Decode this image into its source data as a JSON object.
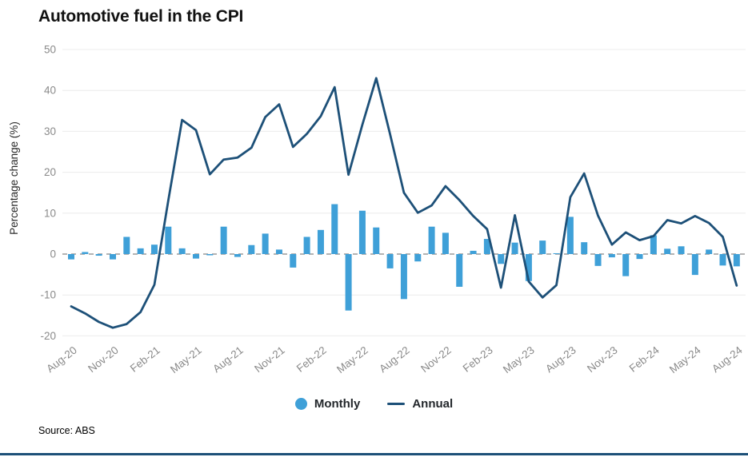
{
  "title": "Automotive fuel in the CPI",
  "source_note": "Source: ABS",
  "legend": {
    "monthly": "Monthly",
    "annual": "Annual"
  },
  "y_axis": {
    "label": "Percentage change (%)",
    "ticks": [
      50,
      40,
      30,
      20,
      10,
      0,
      -10,
      -20
    ]
  },
  "colors": {
    "monthly_bar": "#3FA0D8",
    "annual_line": "#1D5078",
    "gridline": "#ECECEC",
    "zero_line": "#B3B3B3",
    "tick_text": "#8A8A8A",
    "axis_label_text": "#2B2B2B",
    "title_text": "#111111",
    "bottom_border": "#1D5078"
  },
  "chart_data": {
    "type": "bar+line",
    "title": "Automotive fuel in the CPI",
    "xlabel": "",
    "ylabel": "Percentage change (%)",
    "ylim": [
      -20,
      50
    ],
    "ytick_step": 10,
    "grid": true,
    "legend_position": "bottom",
    "x_tick_every": 3,
    "categories": [
      "Aug-20",
      "Sep-20",
      "Oct-20",
      "Nov-20",
      "Dec-20",
      "Jan-21",
      "Feb-21",
      "Mar-21",
      "Apr-21",
      "May-21",
      "Jun-21",
      "Jul-21",
      "Aug-21",
      "Sep-21",
      "Oct-21",
      "Nov-21",
      "Dec-21",
      "Jan-22",
      "Feb-22",
      "Mar-22",
      "Apr-22",
      "May-22",
      "Jun-22",
      "Jul-22",
      "Aug-22",
      "Sep-22",
      "Oct-22",
      "Nov-22",
      "Dec-22",
      "Jan-23",
      "Feb-23",
      "Mar-23",
      "Apr-23",
      "May-23",
      "Jun-23",
      "Jul-23",
      "Aug-23",
      "Sep-23",
      "Oct-23",
      "Nov-23",
      "Dec-23",
      "Jan-24",
      "Feb-24",
      "Mar-24",
      "Apr-24",
      "May-24",
      "Jun-24",
      "Jul-24",
      "Aug-24"
    ],
    "series": [
      {
        "name": "Monthly",
        "type": "bar",
        "values": [
          -1.3,
          0.5,
          -0.4,
          -1.3,
          4.2,
          1.4,
          2.3,
          6.7,
          1.4,
          -1.1,
          -0.3,
          6.7,
          -0.7,
          2.2,
          5.0,
          1.1,
          -3.3,
          4.2,
          5.9,
          12.2,
          -13.8,
          10.6,
          6.5,
          -3.5,
          -11.0,
          -1.8,
          6.7,
          5.2,
          -8.0,
          0.8,
          3.7,
          -2.4,
          2.8,
          -6.6,
          3.3,
          0.2,
          9.1,
          2.9,
          -2.9,
          -0.8,
          -5.4,
          -1.2,
          4.6,
          1.3,
          1.9,
          -5.1,
          1.1,
          -2.8,
          -3.0
        ]
      },
      {
        "name": "Annual",
        "type": "line",
        "values": [
          -12.8,
          -14.5,
          -16.6,
          -18.0,
          -17.1,
          -14.2,
          -7.5,
          13.0,
          32.8,
          30.3,
          19.5,
          23.1,
          23.6,
          26.0,
          33.5,
          36.6,
          26.2,
          29.4,
          33.7,
          40.8,
          19.4,
          31.6,
          43.0,
          29.3,
          15.0,
          10.1,
          11.9,
          16.6,
          13.2,
          9.3,
          6.1,
          -8.2,
          9.5,
          -6.7,
          -10.6,
          -7.6,
          13.9,
          19.7,
          9.4,
          2.3,
          5.3,
          3.4,
          4.4,
          8.3,
          7.5,
          9.3,
          7.6,
          4.2,
          -7.7
        ]
      }
    ]
  }
}
